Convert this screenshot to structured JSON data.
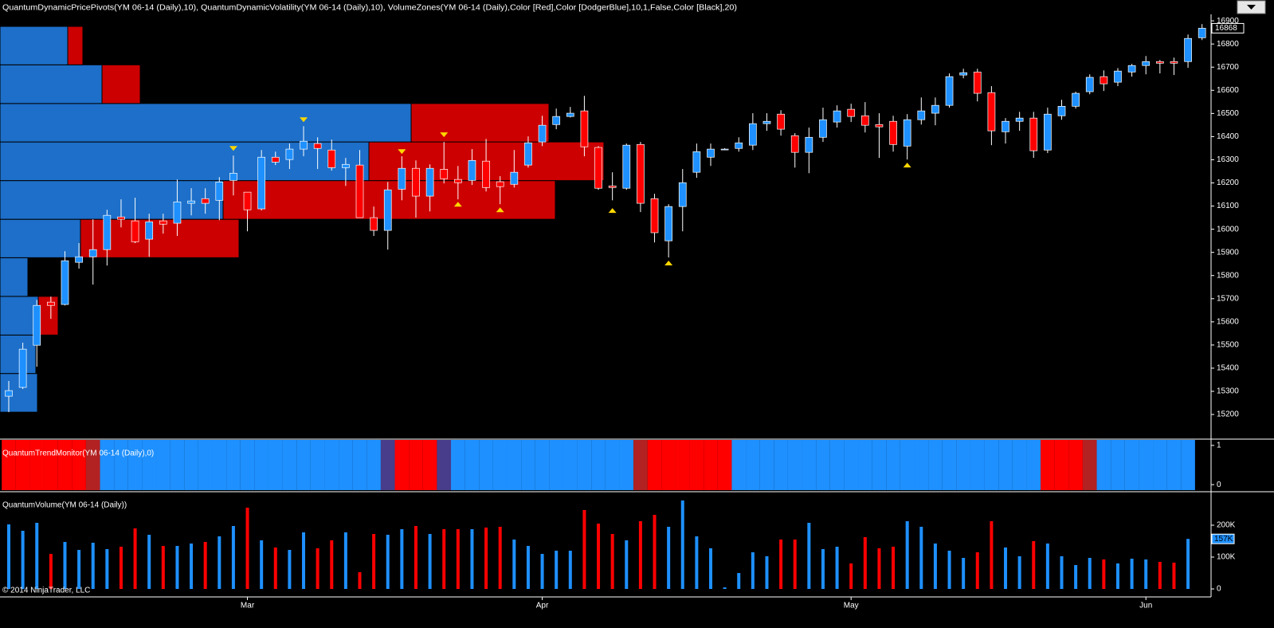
{
  "chart_data": [
    {
      "type": "candlestick",
      "title": "QuantumDynamicPricePivots(YM 06-14 (Daily),10), QuantumDynamicVolatility(YM 06-14 (Daily),10), VolumeZones(YM 06-14 (Daily),Color [Red],Color [DodgerBlue],10,1,False,Color [Black],20)",
      "categories": [
        null,
        null,
        null,
        null,
        null,
        null,
        null,
        null,
        null,
        null,
        null,
        null,
        null,
        null,
        null,
        null,
        null,
        "Mar",
        null,
        null,
        null,
        null,
        null,
        null,
        null,
        null,
        null,
        null,
        null,
        null,
        null,
        null,
        null,
        null,
        null,
        null,
        null,
        null,
        "Apr",
        null,
        null,
        null,
        null,
        null,
        null,
        null,
        null,
        null,
        null,
        null,
        null,
        null,
        null,
        null,
        null,
        null,
        null,
        null,
        null,
        null,
        "May",
        null,
        null,
        null,
        null,
        null,
        null,
        null,
        null,
        null,
        null,
        null,
        null,
        null,
        null,
        null,
        null,
        null,
        null,
        null,
        null,
        "Jun",
        null,
        null,
        null,
        null
      ],
      "open": [
        15279,
        15317,
        15499,
        15685,
        15675,
        15857,
        15881,
        15912,
        16053,
        16036,
        15957,
        16036,
        16026,
        16112,
        16132,
        16125,
        16211,
        16160,
        16088,
        16311,
        16301,
        16346,
        16370,
        16342,
        16266,
        16277,
        16050,
        15995,
        16173,
        16263,
        16143,
        16259,
        16215,
        16211,
        16294,
        16205,
        16194,
        16277,
        16377,
        16452,
        16487,
        16511,
        16353,
        16187,
        16177,
        16366,
        16132,
        15950,
        16098,
        16246,
        16311,
        16346,
        16349,
        16363,
        16456,
        16497,
        16404,
        16332,
        16397,
        16463,
        16518,
        16490,
        16452,
        16466,
        16359,
        16473,
        16501,
        16535,
        16666,
        16679,
        16590,
        16421,
        16466,
        16480,
        16342,
        16490,
        16531,
        16594,
        16659,
        16635,
        16679,
        16707,
        16724,
        16724,
        16724,
        16827
      ],
      "high": [
        15345,
        15510,
        15695,
        15709,
        15905,
        15940,
        16043,
        16084,
        16129,
        16136,
        16067,
        16067,
        16215,
        16177,
        16177,
        16225,
        16318,
        16160,
        16342,
        16335,
        16370,
        16445,
        16397,
        16387,
        16308,
        16342,
        16098,
        16204,
        16315,
        16297,
        16280,
        16377,
        16273,
        16346,
        16390,
        16229,
        16342,
        16401,
        16490,
        16521,
        16528,
        16576,
        16359,
        16246,
        16370,
        16377,
        16153,
        16108,
        16260,
        16370,
        16370,
        16350,
        16397,
        16501,
        16501,
        16514,
        16415,
        16439,
        16525,
        16535,
        16542,
        16549,
        16501,
        16490,
        16497,
        16569,
        16569,
        16673,
        16693,
        16693,
        16618,
        16480,
        16507,
        16507,
        16525,
        16559,
        16594,
        16669,
        16686,
        16696,
        16714,
        16748,
        16731,
        16741,
        16841,
        16886
      ],
      "low": [
        15210,
        15310,
        15406,
        15613,
        15671,
        15830,
        15761,
        15843,
        16008,
        15940,
        15881,
        15981,
        15971,
        16060,
        16067,
        16039,
        16146,
        15991,
        16081,
        16277,
        16260,
        16315,
        16260,
        16253,
        16187,
        16050,
        15971,
        15912,
        16125,
        16050,
        16077,
        16198,
        16129,
        16191,
        16163,
        16108,
        16180,
        16266,
        16359,
        16432,
        16483,
        16315,
        16170,
        16125,
        16170,
        16074,
        15943,
        15878,
        15991,
        16222,
        16273,
        16342,
        16335,
        16342,
        16425,
        16404,
        16266,
        16242,
        16377,
        16439,
        16463,
        16418,
        16308,
        16335,
        16301,
        16452,
        16449,
        16525,
        16652,
        16552,
        16363,
        16370,
        16425,
        16308,
        16329,
        16473,
        16521,
        16583,
        16597,
        16618,
        16659,
        16669,
        16673,
        16666,
        16697,
        16817
      ],
      "close": [
        15303,
        15482,
        15671,
        15671,
        15864,
        15881,
        15912,
        16060,
        16043,
        15946,
        16032,
        16022,
        16118,
        16122,
        16112,
        16204,
        16242,
        16084,
        16311,
        16290,
        16346,
        16380,
        16349,
        16266,
        16280,
        16050,
        15995,
        16170,
        16263,
        16143,
        16263,
        16218,
        16201,
        16297,
        16180,
        16184,
        16246,
        16373,
        16449,
        16487,
        16501,
        16356,
        16177,
        16180,
        16363,
        16112,
        15985,
        16098,
        16201,
        16335,
        16346,
        16346,
        16373,
        16456,
        16466,
        16432,
        16332,
        16397,
        16473,
        16511,
        16487,
        16449,
        16442,
        16366,
        16473,
        16511,
        16535,
        16659,
        16676,
        16587,
        16425,
        16466,
        16480,
        16339,
        16497,
        16531,
        16587,
        16656,
        16628,
        16683,
        16707,
        16724,
        16717,
        16717,
        16824,
        16868
      ],
      "up_color": "dodgerblue",
      "down_color": "red",
      "ylim": [
        15097,
        16928
      ],
      "yticks": [
        15200,
        15300,
        15400,
        15500,
        15600,
        15700,
        15800,
        15900,
        16000,
        16100,
        16200,
        16300,
        16400,
        16500,
        16600,
        16700,
        16800,
        16900
      ],
      "volume_zones": {
        "edges": [
          15210,
          15377,
          15543,
          15710,
          15877,
          16043,
          16210,
          16377,
          16543,
          16710,
          16876
        ],
        "up": [
          47,
          45,
          48,
          35,
          101,
          280,
          463,
          516,
          128,
          85
        ],
        "down": [
          0,
          0,
          25,
          0,
          199,
          417,
          295,
          173,
          48,
          19
        ],
        "up_color": "#1d6fc9",
        "down_color": "#cc0000"
      },
      "pivots": {
        "high_bars": [
          16,
          21,
          28,
          31
        ],
        "high_values": [
          16349,
          16473,
          16335,
          16408
        ],
        "low_bars": [
          32,
          35,
          43,
          47,
          64
        ],
        "low_values": [
          16108,
          16084,
          16081,
          15854,
          16277
        ],
        "color": "#ffd700"
      }
    },
    {
      "type": "trend",
      "title": "QuantumTrendMonitor(YM 06-14 (Daily),0)",
      "colors": [
        "red",
        "red",
        "red",
        "red",
        "red",
        "red",
        "firebrick",
        "dodgerblue",
        "dodgerblue",
        "dodgerblue",
        "dodgerblue",
        "dodgerblue",
        "dodgerblue",
        "dodgerblue",
        "dodgerblue",
        "dodgerblue",
        "dodgerblue",
        "dodgerblue",
        "dodgerblue",
        "dodgerblue",
        "dodgerblue",
        "dodgerblue",
        "dodgerblue",
        "dodgerblue",
        "dodgerblue",
        "dodgerblue",
        "dodgerblue",
        "darkslateblue",
        "red",
        "red",
        "red",
        "darkslateblue",
        "dodgerblue",
        "dodgerblue",
        "dodgerblue",
        "dodgerblue",
        "dodgerblue",
        "dodgerblue",
        "dodgerblue",
        "dodgerblue",
        "dodgerblue",
        "dodgerblue",
        "dodgerblue",
        "dodgerblue",
        "dodgerblue",
        "firebrick",
        "red",
        "red",
        "red",
        "red",
        "red",
        "red",
        "dodgerblue",
        "dodgerblue",
        "dodgerblue",
        "dodgerblue",
        "dodgerblue",
        "dodgerblue",
        "dodgerblue",
        "dodgerblue",
        "dodgerblue",
        "dodgerblue",
        "dodgerblue",
        "dodgerblue",
        "dodgerblue",
        "dodgerblue",
        "dodgerblue",
        "dodgerblue",
        "dodgerblue",
        "dodgerblue",
        "dodgerblue",
        "dodgerblue",
        "dodgerblue",
        "dodgerblue",
        "red",
        "red",
        "red",
        "firebrick",
        "dodgerblue",
        "dodgerblue",
        "dodgerblue",
        "dodgerblue",
        "dodgerblue",
        "dodgerblue",
        "dodgerblue",
        null
      ],
      "ylim": [
        -0.14,
        1.14
      ],
      "yticks": [
        0,
        1
      ]
    },
    {
      "type": "bar",
      "title": "QuantumVolume(YM 06-14 (Daily))",
      "values": [
        202500,
        182500,
        207500,
        110000,
        147500,
        122500,
        145000,
        125000,
        132500,
        190000,
        170000,
        135000,
        135000,
        142500,
        147500,
        165000,
        197500,
        255000,
        152500,
        130000,
        122500,
        177500,
        127500,
        152500,
        177500,
        52500,
        172500,
        170000,
        187500,
        197500,
        172500,
        187500,
        187500,
        187500,
        192500,
        195000,
        155000,
        135000,
        110000,
        120000,
        120000,
        247500,
        205000,
        172500,
        152500,
        212500,
        232500,
        195000,
        277500,
        165000,
        127500,
        5000,
        50000,
        115000,
        102500,
        155000,
        155000,
        207500,
        125000,
        132500,
        80000,
        162500,
        127500,
        132500,
        212500,
        195000,
        142500,
        120000,
        97500,
        115000,
        212500,
        130000,
        102500,
        150000,
        142500,
        102500,
        75000,
        97500,
        92500,
        80000,
        95000,
        92500,
        85000,
        82500,
        157000,
        null
      ],
      "value_labels": [
        null,
        null,
        null,
        null,
        null,
        null,
        null,
        null,
        null,
        null,
        null,
        null,
        null,
        null,
        null,
        null,
        null,
        null,
        null,
        null,
        null,
        null,
        null,
        null,
        null,
        null,
        null,
        null,
        null,
        null,
        null,
        null,
        null,
        null,
        null,
        null,
        null,
        null,
        null,
        null,
        null,
        null,
        null,
        null,
        null,
        null,
        null,
        null,
        null,
        null,
        null,
        null,
        null,
        null,
        null,
        null,
        null,
        null,
        null,
        null,
        null,
        null,
        null,
        null,
        null,
        null,
        null,
        null,
        null,
        null,
        null,
        null,
        null,
        null,
        null,
        null,
        null,
        null,
        null,
        null,
        null,
        null,
        null,
        null,
        "157K",
        null
      ],
      "up_color": "dodgerblue",
      "down_color": "red",
      "ylim": [
        -22500,
        300000
      ],
      "yticks": [
        0,
        {
          "value": 100000,
          "label": "100K"
        },
        {
          "value": 200000,
          "label": "200K"
        }
      ],
      "footer": "© 2014 NinjaTrader, LLC"
    }
  ]
}
